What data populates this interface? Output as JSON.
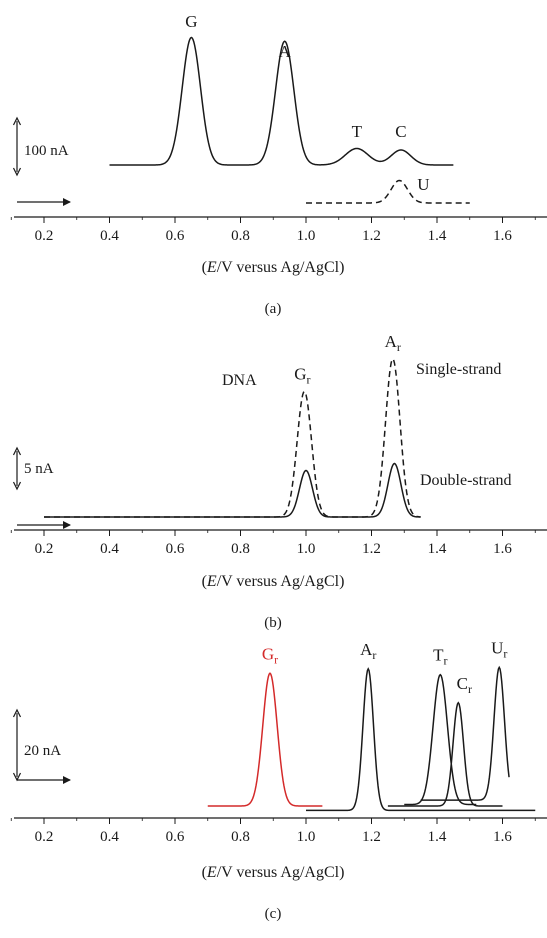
{
  "colors": {
    "ink": "#1a1a1a",
    "highlight": "#d42a2a"
  },
  "chart_data": [
    {
      "panel": "(a)",
      "type": "line",
      "xlabel": "(E/V versus Ag/AgCl)",
      "xlabel_parts": [
        "(",
        "E",
        "/V versus Ag/AgCl)"
      ],
      "xlim": [
        0.1,
        1.7
      ],
      "xticks": [
        0.2,
        0.4,
        0.6,
        0.8,
        1.0,
        1.2,
        1.4,
        1.6
      ],
      "tick_labels": [
        "0.2",
        "0.4",
        "0.6",
        "0.8",
        "1.0",
        "1.2",
        "1.4",
        "1.6"
      ],
      "scale_bar": {
        "label": "100 nA",
        "value_nA": 100
      },
      "series": [
        {
          "style": "solid",
          "color": "#1a1a1a",
          "range": [
            0.4,
            1.45
          ],
          "peaks": [
            {
              "label": "G",
              "sub": "",
              "x": 0.65,
              "height_nA": 170,
              "width": 0.028
            },
            {
              "label": "A",
              "sub": "",
              "x": 0.935,
              "height_nA": 165,
              "width": 0.028
            },
            {
              "label": "T",
              "sub": "",
              "x": 1.155,
              "height_nA": 22,
              "width": 0.035
            },
            {
              "label": "C",
              "sub": "",
              "x": 1.29,
              "height_nA": 20,
              "width": 0.03
            }
          ]
        },
        {
          "style": "dashed",
          "color": "#1a1a1a",
          "range": [
            1.0,
            1.5
          ],
          "peaks": [
            {
              "label": "U",
              "sub": "",
              "x": 1.285,
              "height_nA": 30,
              "width": 0.025
            }
          ]
        }
      ]
    },
    {
      "panel": "(b)",
      "type": "line",
      "xlabel": "(E/V versus Ag/AgCl)",
      "xlabel_parts": [
        "(",
        "E",
        "/V versus Ag/AgCl)"
      ],
      "xlim": [
        0.1,
        1.7
      ],
      "xticks": [
        0.2,
        0.4,
        0.6,
        0.8,
        1.0,
        1.2,
        1.4,
        1.6
      ],
      "tick_labels": [
        "0.2",
        "0.4",
        "0.6",
        "0.8",
        "1.0",
        "1.2",
        "1.4",
        "1.6"
      ],
      "scale_bar": {
        "label": "5 nA",
        "value_nA": 5
      },
      "annotations": [
        "DNA",
        "Single-strand",
        "Double-strand"
      ],
      "series": [
        {
          "name": "Single-strand",
          "style": "dashed",
          "color": "#1a1a1a",
          "range": [
            0.2,
            1.35
          ],
          "peaks": [
            {
              "label": "G",
              "sub": "r",
              "x": 0.995,
              "height_nA": 27,
              "width": 0.022
            },
            {
              "label": "A",
              "sub": "r",
              "x": 1.265,
              "height_nA": 34,
              "width": 0.022
            }
          ]
        },
        {
          "name": "Double-strand",
          "style": "solid",
          "color": "#1a1a1a",
          "range": [
            0.2,
            1.35
          ],
          "peaks": [
            {
              "label": "",
              "sub": "",
              "x": 1.0,
              "height_nA": 10,
              "width": 0.02
            },
            {
              "label": "",
              "sub": "",
              "x": 1.27,
              "height_nA": 11.5,
              "width": 0.02
            }
          ]
        }
      ]
    },
    {
      "panel": "(c)",
      "type": "line",
      "xlabel": "(E/V versus Ag/AgCl)",
      "xlabel_parts": [
        "(",
        "E",
        "/V versus Ag/AgCl)"
      ],
      "xlim": [
        0.1,
        1.7
      ],
      "xticks": [
        0.2,
        0.4,
        0.6,
        0.8,
        1.0,
        1.2,
        1.4,
        1.6
      ],
      "tick_labels": [
        "0.2",
        "0.4",
        "0.6",
        "0.8",
        "1.0",
        "1.2",
        "1.4",
        "1.6"
      ],
      "scale_bar": {
        "label": "20 nA",
        "value_nA": 20
      },
      "series": [
        {
          "style": "solid",
          "color": "#d42a2a",
          "range": [
            0.7,
            1.05
          ],
          "baseline_nA": 0,
          "peaks": [
            {
              "label": "G",
              "sub": "r",
              "x": 0.89,
              "height_nA": 45,
              "width": 0.022
            }
          ]
        },
        {
          "style": "solid",
          "color": "#1a1a1a",
          "range": [
            1.0,
            1.7
          ],
          "baseline_nA": -1.5,
          "peaks": [
            {
              "label": "A",
              "sub": "r",
              "x": 1.19,
              "height_nA": 48,
              "width": 0.016
            }
          ]
        },
        {
          "style": "solid",
          "color": "#1a1a1a",
          "range": [
            1.3,
            1.52
          ],
          "baseline_nA": 0.5,
          "peaks": [
            {
              "label": "T",
              "sub": "r",
              "x": 1.41,
              "height_nA": 44,
              "width": 0.022
            }
          ]
        },
        {
          "style": "solid",
          "color": "#1a1a1a",
          "range": [
            1.25,
            1.6
          ],
          "baseline_nA": 0,
          "peaks": [
            {
              "label": "C",
              "sub": "r",
              "x": 1.465,
              "height_nA": 35,
              "width": 0.016
            }
          ]
        },
        {
          "style": "solid",
          "color": "#1a1a1a",
          "range": [
            1.35,
            1.62
          ],
          "baseline_nA": 2,
          "peaks": [
            {
              "label": "U",
              "sub": "r",
              "x": 1.59,
              "height_nA": 45,
              "width": 0.016
            }
          ]
        }
      ]
    }
  ]
}
